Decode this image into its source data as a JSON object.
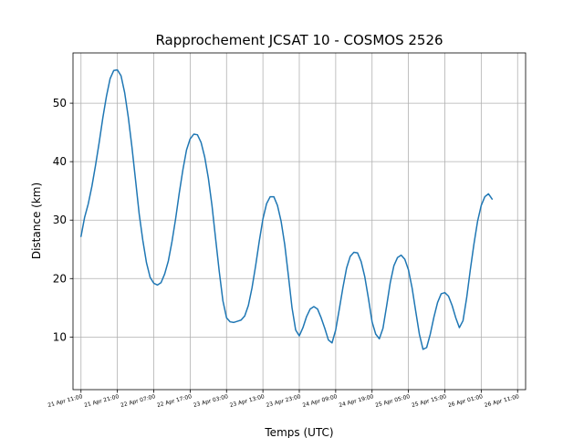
{
  "chart_data": {
    "type": "line",
    "title": "Rapprochement JCSAT 10 - COSMOS 2526",
    "xlabel": "Temps (UTC)",
    "ylabel": "Distance (km)",
    "x_unit": "hours",
    "xlim": [
      -2.2,
      122.2
    ],
    "ylim": [
      1.0,
      58.6
    ],
    "yticks": [
      10,
      20,
      30,
      40,
      50
    ],
    "grid": true,
    "xticks": [
      {
        "x": 0,
        "label": "21 Apr 11:00"
      },
      {
        "x": 10,
        "label": "21 Apr 21:00"
      },
      {
        "x": 20,
        "label": "22 Apr 07:00"
      },
      {
        "x": 30,
        "label": "22 Apr 17:00"
      },
      {
        "x": 40,
        "label": "23 Apr 03:00"
      },
      {
        "x": 50,
        "label": "23 Apr 13:00"
      },
      {
        "x": 60,
        "label": "23 Apr 23:00"
      },
      {
        "x": 70,
        "label": "24 Apr 09:00"
      },
      {
        "x": 80,
        "label": "24 Apr 19:00"
      },
      {
        "x": 90,
        "label": "25 Apr 05:00"
      },
      {
        "x": 100,
        "label": "25 Apr 15:00"
      },
      {
        "x": 110,
        "label": "26 Apr 01:00"
      },
      {
        "x": 120,
        "label": "26 Apr 11:00"
      }
    ],
    "series": [
      {
        "color": "#1f77b4",
        "points": [
          [
            0,
            27.2
          ],
          [
            1,
            30.5
          ],
          [
            2,
            32.8
          ],
          [
            3,
            35.8
          ],
          [
            4,
            39.4
          ],
          [
            5,
            43.3
          ],
          [
            6,
            47.5
          ],
          [
            7,
            51.2
          ],
          [
            8,
            54.2
          ],
          [
            9,
            55.6
          ],
          [
            10,
            55.7
          ],
          [
            11,
            54.7
          ],
          [
            12,
            51.8
          ],
          [
            13,
            47.6
          ],
          [
            14,
            42.5
          ],
          [
            15,
            36.8
          ],
          [
            16,
            31.0
          ],
          [
            17,
            26.5
          ],
          [
            18,
            22.7
          ],
          [
            19,
            20.2
          ],
          [
            20,
            19.2
          ],
          [
            21,
            18.9
          ],
          [
            22,
            19.3
          ],
          [
            23,
            20.8
          ],
          [
            24,
            23.0
          ],
          [
            25,
            26.3
          ],
          [
            26,
            30.2
          ],
          [
            27,
            34.6
          ],
          [
            28,
            38.6
          ],
          [
            29,
            42.0
          ],
          [
            30,
            43.9
          ],
          [
            31,
            44.7
          ],
          [
            32,
            44.6
          ],
          [
            33,
            43.3
          ],
          [
            34,
            40.8
          ],
          [
            35,
            37.2
          ],
          [
            36,
            32.5
          ],
          [
            37,
            26.8
          ],
          [
            38,
            21.2
          ],
          [
            39,
            16.2
          ],
          [
            40,
            13.3
          ],
          [
            41,
            12.6
          ],
          [
            42,
            12.5
          ],
          [
            43,
            12.7
          ],
          [
            44,
            12.9
          ],
          [
            45,
            13.6
          ],
          [
            46,
            15.4
          ],
          [
            47,
            18.4
          ],
          [
            48,
            22.2
          ],
          [
            49,
            26.4
          ],
          [
            50,
            30.2
          ],
          [
            51,
            32.8
          ],
          [
            52,
            34.0
          ],
          [
            53,
            34.0
          ],
          [
            54,
            32.5
          ],
          [
            55,
            29.8
          ],
          [
            56,
            25.8
          ],
          [
            57,
            20.5
          ],
          [
            58,
            15.0
          ],
          [
            59,
            11.2
          ],
          [
            60,
            10.2
          ],
          [
            61,
            11.6
          ],
          [
            62,
            13.5
          ],
          [
            63,
            14.8
          ],
          [
            64,
            15.2
          ],
          [
            65,
            14.8
          ],
          [
            66,
            13.3
          ],
          [
            67,
            11.5
          ],
          [
            68,
            9.5
          ],
          [
            69,
            9.0
          ],
          [
            70,
            11.2
          ],
          [
            71,
            14.8
          ],
          [
            72,
            18.5
          ],
          [
            73,
            21.8
          ],
          [
            74,
            23.8
          ],
          [
            75,
            24.5
          ],
          [
            76,
            24.4
          ],
          [
            77,
            22.9
          ],
          [
            78,
            20.3
          ],
          [
            79,
            16.6
          ],
          [
            80,
            12.6
          ],
          [
            81,
            10.5
          ],
          [
            82,
            9.7
          ],
          [
            83,
            11.5
          ],
          [
            84,
            15.3
          ],
          [
            85,
            19.3
          ],
          [
            86,
            22.2
          ],
          [
            87,
            23.6
          ],
          [
            88,
            24.0
          ],
          [
            89,
            23.3
          ],
          [
            90,
            21.5
          ],
          [
            91,
            18.4
          ],
          [
            92,
            14.4
          ],
          [
            93,
            10.5
          ],
          [
            94,
            7.9
          ],
          [
            95,
            8.2
          ],
          [
            96,
            10.5
          ],
          [
            97,
            13.4
          ],
          [
            98,
            15.9
          ],
          [
            99,
            17.4
          ],
          [
            100,
            17.6
          ],
          [
            101,
            17.0
          ],
          [
            102,
            15.4
          ],
          [
            103,
            13.3
          ],
          [
            104,
            11.6
          ],
          [
            105,
            12.8
          ],
          [
            106,
            16.7
          ],
          [
            107,
            21.5
          ],
          [
            108,
            25.9
          ],
          [
            109,
            29.8
          ],
          [
            110,
            32.5
          ],
          [
            111,
            34.0
          ],
          [
            112,
            34.5
          ],
          [
            113,
            33.6
          ]
        ]
      }
    ]
  }
}
